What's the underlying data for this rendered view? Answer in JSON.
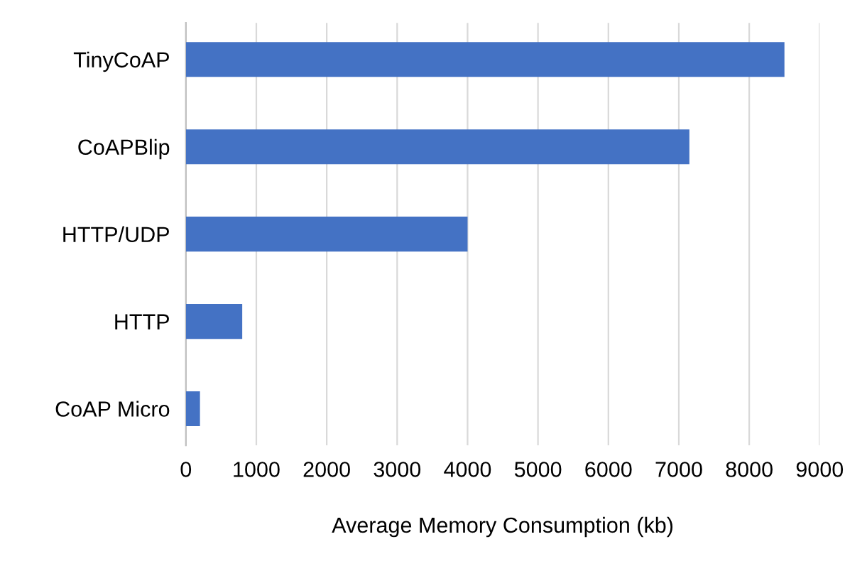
{
  "chart_data": {
    "type": "bar",
    "orientation": "horizontal",
    "xlabel": "Average Memory Consumption (kb)",
    "categories": [
      "TinyCoAP",
      "CoAPBlip",
      "HTTP/UDP",
      "HTTP",
      "CoAP Micro"
    ],
    "values": [
      8500,
      7150,
      4000,
      800,
      200
    ],
    "color": "#4472c4",
    "xlim": [
      0,
      9000
    ],
    "xticks": [
      0,
      1000,
      2000,
      3000,
      4000,
      5000,
      6000,
      7000,
      8000,
      9000
    ],
    "grid": "x"
  }
}
